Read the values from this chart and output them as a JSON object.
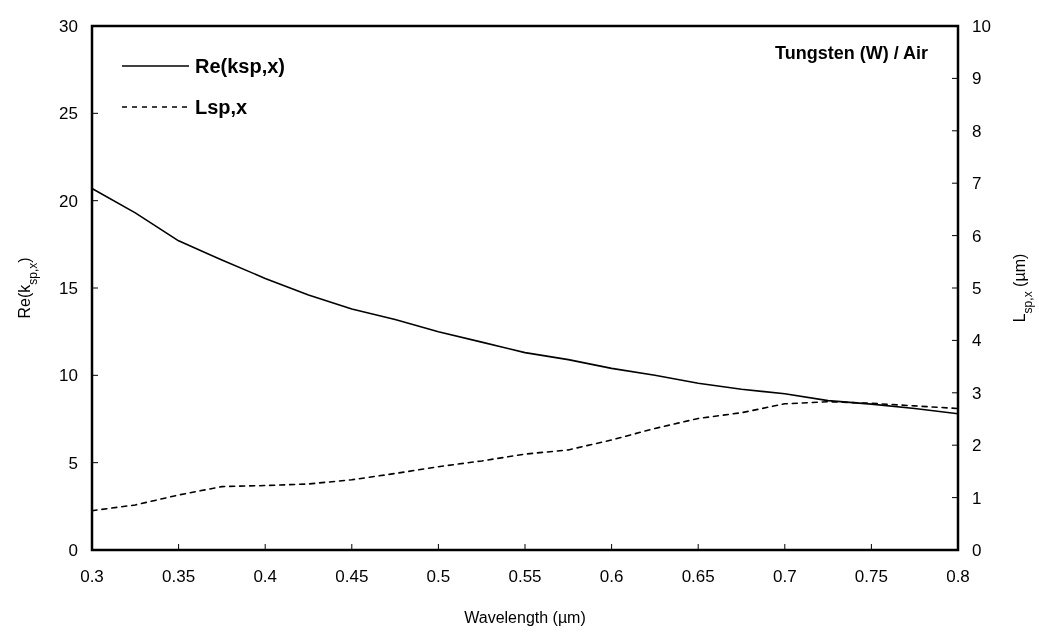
{
  "chart_data": {
    "type": "line",
    "xlabel": "Wavelength (µm)",
    "ylabel": "Re(k$_{sp,x}$)",
    "y2label": "L$_{sp,x}$ (µm)",
    "annotations": [
      "Tungsten (W) / Air"
    ],
    "x": [
      0.3,
      0.325,
      0.35,
      0.375,
      0.4,
      0.425,
      0.45,
      0.475,
      0.5,
      0.525,
      0.55,
      0.575,
      0.6,
      0.625,
      0.65,
      0.675,
      0.7,
      0.725,
      0.75,
      0.775,
      0.8
    ],
    "series": [
      {
        "name": "Re(ksp,x)",
        "color": "#000000",
        "line_style": "solid",
        "values": [
          20.7,
          19.3,
          17.7,
          16.6,
          15.55,
          14.6,
          13.8,
          13.2,
          12.5,
          11.9,
          11.3,
          10.9,
          10.4,
          10.0,
          9.55,
          9.2,
          8.95,
          8.55,
          8.35,
          8.1,
          7.8
        ]
      },
      {
        "name": "Lsp,x",
        "color": "#000000",
        "line_style": "dashed",
        "axis": "y2",
        "values": [
          0.75,
          0.86,
          1.05,
          1.21,
          1.23,
          1.26,
          1.34,
          1.46,
          1.59,
          1.7,
          1.83,
          1.91,
          2.1,
          2.32,
          2.51,
          2.62,
          2.79,
          2.83,
          2.8,
          2.75,
          2.7
        ]
      }
    ],
    "xlim": [
      0.3,
      0.8
    ],
    "xticks": [
      0.3,
      0.35,
      0.4,
      0.45,
      0.5,
      0.55,
      0.6,
      0.65,
      0.7,
      0.75,
      0.8
    ],
    "ylim": [
      0,
      30
    ],
    "yticks": [
      0,
      5,
      10,
      15,
      20,
      25,
      30
    ],
    "y2lim": [
      0,
      10
    ],
    "y2ticks": [
      0,
      1,
      2,
      3,
      4,
      5,
      6,
      7,
      8,
      9,
      10
    ],
    "legend": "top left",
    "grid": false
  }
}
